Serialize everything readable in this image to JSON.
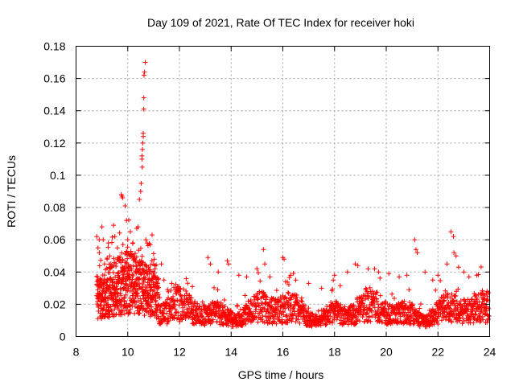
{
  "chart_data": {
    "type": "scatter",
    "title": "Day 109 of 2021, Rate Of TEC Index for receiver hoki",
    "xlabel": "GPS time / hours",
    "ylabel": "ROTI / TECUs",
    "xlim": [
      8,
      24
    ],
    "ylim": [
      0,
      0.18
    ],
    "xticks": [
      "8",
      "10",
      "12",
      "14",
      "16",
      "18",
      "20",
      "22",
      "24"
    ],
    "yticks": [
      "0",
      "0.02",
      "0.04",
      "0.06",
      "0.08",
      "0.1",
      "0.12",
      "0.14",
      "0.16",
      "0.18"
    ],
    "grid": true,
    "marker": "+",
    "series": [
      {
        "name": "ROTI",
        "color": "#ff0000",
        "x": [
          8.8,
          8.85,
          8.9,
          9.0,
          9.05,
          9.1,
          9.2,
          9.25,
          9.3,
          9.45,
          9.5,
          9.6,
          9.75,
          9.78,
          9.8,
          9.9,
          9.95,
          10.0,
          10.1,
          10.2,
          10.35,
          10.4,
          10.45,
          10.5,
          10.52,
          10.55,
          10.55,
          10.56,
          10.57,
          10.58,
          10.6,
          10.6,
          10.62,
          10.62,
          10.63,
          10.65,
          10.68,
          10.7,
          10.75,
          11.0,
          11.3,
          11.4,
          11.7,
          12.0,
          12.5,
          13.1,
          13.2,
          13.5,
          13.85,
          13.9,
          14.3,
          14.6,
          15.0,
          15.25,
          15.3,
          15.5,
          16.0,
          16.05,
          16.3,
          16.5,
          17.0,
          17.5,
          17.95,
          18.0,
          18.5,
          18.8,
          18.9,
          19.3,
          19.7,
          20.1,
          20.5,
          20.8,
          21.1,
          21.15,
          21.2,
          21.5,
          21.8,
          22.0,
          22.35,
          22.5,
          22.6,
          22.62,
          22.7,
          22.8,
          23.0,
          23.2,
          23.5,
          23.9
        ],
        "y": [
          0.062,
          0.055,
          0.052,
          0.068,
          0.06,
          0.045,
          0.048,
          0.058,
          0.05,
          0.069,
          0.062,
          0.055,
          0.088,
          0.087,
          0.086,
          0.081,
          0.072,
          0.06,
          0.065,
          0.058,
          0.067,
          0.068,
          0.085,
          0.09,
          0.095,
          0.112,
          0.11,
          0.105,
          0.116,
          0.12,
          0.126,
          0.124,
          0.141,
          0.148,
          0.162,
          0.164,
          0.17,
          0.06,
          0.058,
          0.045,
          0.045,
          0.035,
          0.033,
          0.03,
          0.031,
          0.049,
          0.045,
          0.04,
          0.047,
          0.045,
          0.038,
          0.037,
          0.042,
          0.054,
          0.045,
          0.037,
          0.049,
          0.048,
          0.038,
          0.035,
          0.033,
          0.03,
          0.035,
          0.038,
          0.04,
          0.045,
          0.044,
          0.042,
          0.04,
          0.039,
          0.037,
          0.038,
          0.06,
          0.054,
          0.052,
          0.04,
          0.035,
          0.038,
          0.045,
          0.065,
          0.062,
          0.052,
          0.05,
          0.043,
          0.04,
          0.037,
          0.038,
          0.028
        ]
      }
    ]
  }
}
